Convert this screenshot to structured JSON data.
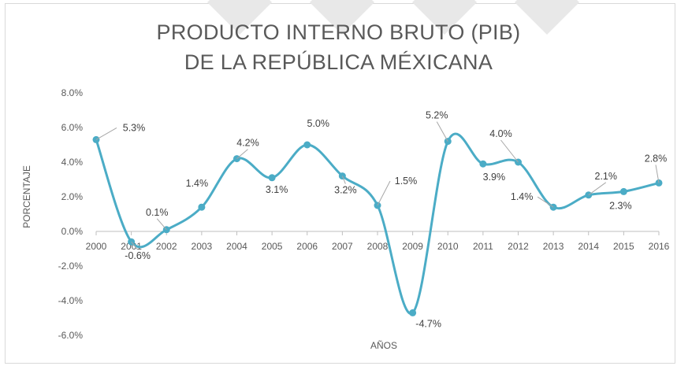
{
  "chart_data": {
    "type": "line",
    "title_line1": "PRODUCTO INTERNO BRUTO (PIB)",
    "title_line2": "DE LA REPÚBLICA MÉXICANA",
    "xlabel": "AÑOS",
    "ylabel": "PORCENTAJE",
    "ylim": [
      -6.0,
      8.0
    ],
    "y_ticks": [
      "8.0%",
      "6.0%",
      "4.0%",
      "2.0%",
      "0.0%",
      "-2.0%",
      "-4.0%",
      "-6.0%"
    ],
    "y_tick_values": [
      8,
      6,
      4,
      2,
      0,
      -2,
      -4,
      -6
    ],
    "categories": [
      "2000",
      "2001",
      "2002",
      "2003",
      "2004",
      "2005",
      "2006",
      "2007",
      "2008",
      "2009",
      "2010",
      "2011",
      "2012",
      "2013",
      "2014",
      "2015",
      "2016"
    ],
    "series": [
      {
        "values": [
          5.3,
          -0.6,
          0.1,
          1.4,
          4.2,
          3.1,
          5.0,
          3.2,
          1.5,
          -4.7,
          5.2,
          3.9,
          4.0,
          1.4,
          2.1,
          2.3,
          2.8
        ],
        "labels": [
          "5.3%",
          "-0.6%",
          "0.1%",
          "1.4%",
          "4.2%",
          "3.1%",
          "5.0%",
          "3.2%",
          "1.5%",
          "-4.7%",
          "5.2%",
          "3.9%",
          "4.0%",
          "1.4%",
          "2.1%",
          "2.3%",
          "2.8%"
        ]
      }
    ],
    "grid": false,
    "legend": "none",
    "colors": {
      "line": "#4bacc6",
      "marker": "#4bacc6",
      "axis": "#bfbfbf",
      "leader": "#a6a6a6",
      "text": "#595959"
    }
  }
}
